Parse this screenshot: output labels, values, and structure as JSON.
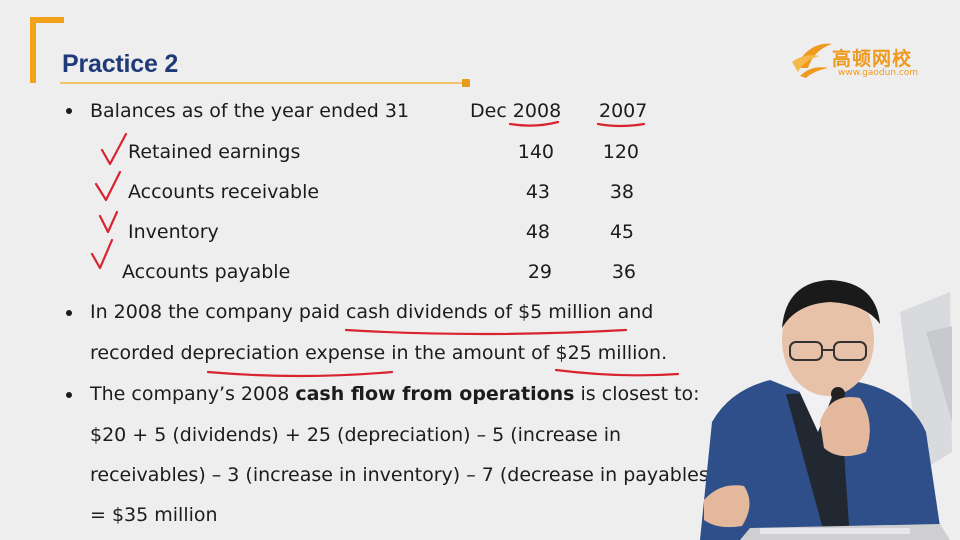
{
  "slide": {
    "title": "Practice 2",
    "logo": {
      "cn": "高顿网校",
      "url": "www.gaodun.com"
    },
    "balances": {
      "intro": "Balances as of the year ended 31",
      "col1": "Dec 2008",
      "col2": "2007",
      "rows": [
        {
          "label": "Retained earnings",
          "v2008": "140",
          "v2007": "120"
        },
        {
          "label": "Accounts receivable",
          "v2008": "43",
          "v2007": "38"
        },
        {
          "label": "Inventory",
          "v2008": "48",
          "v2007": "45"
        },
        {
          "label": "Accounts payable",
          "v2008": "29",
          "v2007": "36"
        }
      ]
    },
    "dividends": {
      "line1": "In 2008 the company paid cash dividends of $5 million and",
      "line2": "recorded depreciation expense in the amount of $25 million."
    },
    "question": {
      "lead": "The company’s 2008 ",
      "bold": "cash flow from operations",
      "tail": " is closest to:"
    },
    "solution": {
      "line1": "$20 + 5 (dividends) + 25 (depreciation) – 5 (increase in",
      "line2": "receivables) – 3 (increase in inventory) – 7 (decrease in payables)",
      "line3": "= $35 million"
    }
  },
  "colors": {
    "title": "#1f3a78",
    "accent": "#f2a21a",
    "annotation": "#d8242f"
  }
}
